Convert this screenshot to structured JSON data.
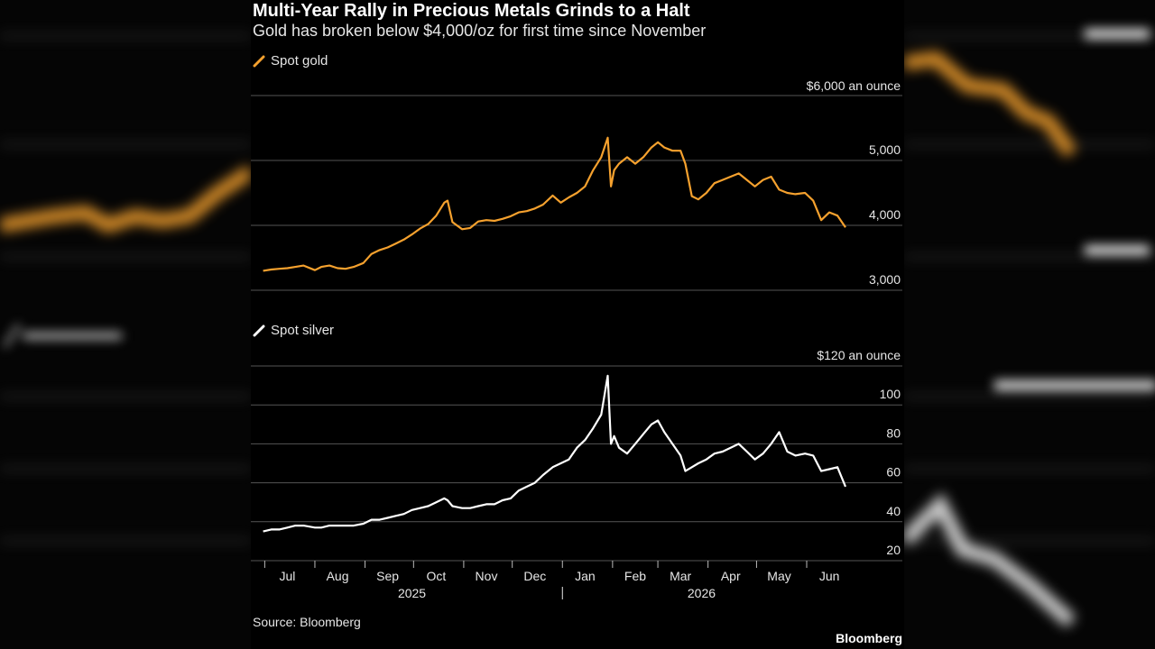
{
  "title": "Multi-Year Rally in Precious Metals Grinds to a Halt",
  "subtitle": "Gold has broken below $4,000/oz for first time since November",
  "source": "Source: Bloomberg",
  "brand": "Bloomberg",
  "colors": {
    "gold": "#f5a12e",
    "silver": "#ffffff",
    "grid": "#555555",
    "background": "#000000"
  },
  "x_axis": {
    "months": [
      "Jul",
      "Aug",
      "Sep",
      "Oct",
      "Nov",
      "Dec",
      "Jan",
      "Feb",
      "Mar",
      "Apr",
      "May",
      "Jun"
    ],
    "years": [
      "2025",
      "2026"
    ]
  },
  "chart_data": [
    {
      "type": "line",
      "name": "Spot gold",
      "legend": "Spot gold",
      "unit_label": "$6,000 an ounce",
      "y_ticks": [
        "5,000",
        "4,000",
        "3,000"
      ],
      "ylim": [
        3000,
        6000
      ],
      "x": [
        "2025-06-30",
        "2025-07-05",
        "2025-07-10",
        "2025-07-15",
        "2025-07-20",
        "2025-07-25",
        "2025-08-01",
        "2025-08-05",
        "2025-08-10",
        "2025-08-15",
        "2025-08-20",
        "2025-08-25",
        "2025-08-31",
        "2025-09-05",
        "2025-09-10",
        "2025-09-15",
        "2025-09-20",
        "2025-09-25",
        "2025-09-30",
        "2025-10-05",
        "2025-10-10",
        "2025-10-15",
        "2025-10-20",
        "2025-10-22",
        "2025-10-25",
        "2025-10-31",
        "2025-11-05",
        "2025-11-10",
        "2025-11-15",
        "2025-11-20",
        "2025-11-25",
        "2025-11-30",
        "2025-12-05",
        "2025-12-10",
        "2025-12-15",
        "2025-12-20",
        "2025-12-26",
        "2025-12-31",
        "2026-01-05",
        "2026-01-10",
        "2026-01-15",
        "2026-01-20",
        "2026-01-25",
        "2026-01-29",
        "2026-01-31",
        "2026-02-02",
        "2026-02-05",
        "2026-02-10",
        "2026-02-15",
        "2026-02-20",
        "2026-02-25",
        "2026-03-01",
        "2026-03-05",
        "2026-03-10",
        "2026-03-15",
        "2026-03-18",
        "2026-03-22",
        "2026-03-26",
        "2026-03-31",
        "2026-04-05",
        "2026-04-10",
        "2026-04-15",
        "2026-04-20",
        "2026-04-25",
        "2026-04-30",
        "2026-05-05",
        "2026-05-10",
        "2026-05-15",
        "2026-05-20",
        "2026-05-25",
        "2026-05-31",
        "2026-06-05",
        "2026-06-10",
        "2026-06-15",
        "2026-06-20",
        "2026-06-25"
      ],
      "values": [
        3300,
        3320,
        3330,
        3340,
        3360,
        3380,
        3310,
        3360,
        3380,
        3340,
        3330,
        3360,
        3420,
        3560,
        3620,
        3660,
        3720,
        3780,
        3860,
        3950,
        4020,
        4150,
        4350,
        4380,
        4050,
        3940,
        3960,
        4060,
        4080,
        4070,
        4100,
        4140,
        4200,
        4220,
        4260,
        4320,
        4460,
        4350,
        4430,
        4500,
        4600,
        4850,
        5050,
        5350,
        4600,
        4850,
        4950,
        5050,
        4950,
        5050,
        5200,
        5280,
        5200,
        5150,
        5150,
        4950,
        4450,
        4400,
        4500,
        4650,
        4700,
        4750,
        4800,
        4700,
        4600,
        4700,
        4750,
        4550,
        4500,
        4480,
        4500,
        4380,
        4080,
        4200,
        4150,
        3970
      ]
    },
    {
      "type": "line",
      "name": "Spot silver",
      "legend": "Spot silver",
      "unit_label": "$120 an ounce",
      "y_ticks": [
        "100",
        "80",
        "60",
        "40",
        "20"
      ],
      "ylim": [
        20,
        120
      ],
      "x": [
        "2025-06-30",
        "2025-07-05",
        "2025-07-10",
        "2025-07-15",
        "2025-07-20",
        "2025-07-25",
        "2025-08-01",
        "2025-08-05",
        "2025-08-10",
        "2025-08-15",
        "2025-08-20",
        "2025-08-25",
        "2025-08-31",
        "2025-09-05",
        "2025-09-10",
        "2025-09-15",
        "2025-09-20",
        "2025-09-25",
        "2025-09-30",
        "2025-10-05",
        "2025-10-10",
        "2025-10-15",
        "2025-10-20",
        "2025-10-22",
        "2025-10-25",
        "2025-10-31",
        "2025-11-05",
        "2025-11-10",
        "2025-11-15",
        "2025-11-20",
        "2025-11-25",
        "2025-11-30",
        "2025-12-05",
        "2025-12-10",
        "2025-12-15",
        "2025-12-20",
        "2025-12-26",
        "2025-12-31",
        "2026-01-05",
        "2026-01-10",
        "2026-01-15",
        "2026-01-20",
        "2026-01-25",
        "2026-01-29",
        "2026-01-31",
        "2026-02-02",
        "2026-02-05",
        "2026-02-10",
        "2026-02-15",
        "2026-02-20",
        "2026-02-25",
        "2026-03-01",
        "2026-03-05",
        "2026-03-10",
        "2026-03-15",
        "2026-03-18",
        "2026-03-22",
        "2026-03-26",
        "2026-03-31",
        "2026-04-05",
        "2026-04-10",
        "2026-04-15",
        "2026-04-20",
        "2026-04-25",
        "2026-04-30",
        "2026-05-05",
        "2026-05-10",
        "2026-05-15",
        "2026-05-20",
        "2026-05-25",
        "2026-05-31",
        "2026-06-05",
        "2026-06-10",
        "2026-06-15",
        "2026-06-20",
        "2026-06-25"
      ],
      "values": [
        35,
        36,
        36,
        37,
        38,
        38,
        37,
        37,
        38,
        38,
        38,
        38,
        39,
        41,
        41,
        42,
        43,
        44,
        46,
        47,
        48,
        50,
        52,
        51,
        48,
        47,
        47,
        48,
        49,
        49,
        51,
        52,
        56,
        58,
        60,
        64,
        68,
        70,
        72,
        78,
        82,
        88,
        95,
        115,
        80,
        84,
        78,
        75,
        80,
        85,
        90,
        92,
        86,
        80,
        74,
        66,
        68,
        70,
        72,
        75,
        76,
        78,
        80,
        76,
        72,
        75,
        80,
        86,
        76,
        74,
        75,
        74,
        66,
        67,
        68,
        58
      ]
    }
  ]
}
